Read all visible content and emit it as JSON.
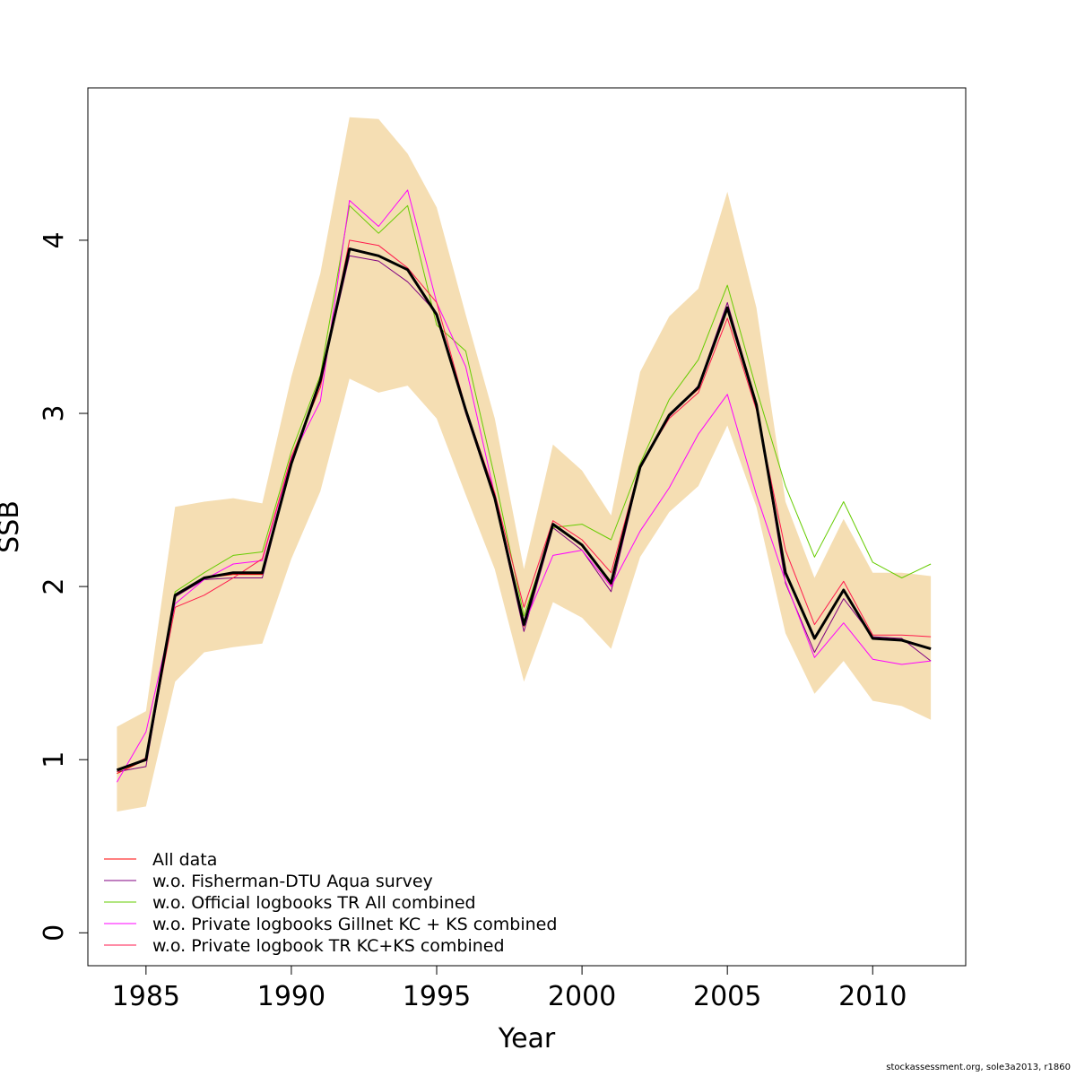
{
  "chart_data": {
    "type": "line",
    "xlabel": "Year",
    "ylabel": "SSB",
    "xlim": [
      1983,
      2013.2
    ],
    "ylim": [
      -0.19,
      4.88
    ],
    "x_ticks": [
      1985,
      1990,
      1995,
      2000,
      2005,
      2010
    ],
    "y_ticks": [
      0,
      1,
      2,
      3,
      4
    ],
    "x": [
      1984,
      1985,
      1986,
      1987,
      1988,
      1989,
      1990,
      1991,
      1992,
      1993,
      1994,
      1995,
      1996,
      1997,
      1998,
      1999,
      2000,
      2001,
      2002,
      2003,
      2004,
      2005,
      2006,
      2007,
      2008,
      2009,
      2010,
      2011,
      2012
    ],
    "band": {
      "color": "#f5deb3",
      "lower": [
        0.7,
        0.73,
        1.45,
        1.62,
        1.65,
        1.67,
        2.16,
        2.55,
        3.2,
        3.12,
        3.16,
        2.97,
        2.53,
        2.1,
        1.45,
        1.91,
        1.82,
        1.64,
        2.17,
        2.43,
        2.58,
        2.93,
        2.46,
        1.73,
        1.38,
        1.57,
        1.34,
        1.31,
        1.23
      ],
      "upper": [
        1.19,
        1.28,
        2.46,
        2.49,
        2.51,
        2.48,
        3.21,
        3.81,
        4.71,
        4.7,
        4.5,
        4.19,
        3.57,
        2.97,
        2.1,
        2.82,
        2.67,
        2.41,
        3.24,
        3.56,
        3.72,
        4.28,
        3.61,
        2.49,
        2.05,
        2.39,
        2.08,
        2.08,
        2.06
      ]
    },
    "series": [
      {
        "name": "All data",
        "color": "#ff0000",
        "width": 1,
        "values": [
          0.92,
          1.0,
          1.94,
          2.05,
          2.07,
          2.07,
          2.72,
          3.19,
          3.95,
          3.91,
          3.83,
          3.57,
          3.02,
          2.51,
          1.77,
          2.36,
          2.24,
          2.01,
          2.69,
          2.99,
          3.14,
          3.61,
          3.05,
          2.08,
          1.7,
          1.98,
          1.7,
          1.69,
          1.64
        ]
      },
      {
        "name": "w.o. Fisherman-DTU Aqua survey",
        "color": "#800080",
        "width": 1,
        "values": [
          0.93,
          0.96,
          1.94,
          2.04,
          2.05,
          2.05,
          2.71,
          3.18,
          3.91,
          3.88,
          3.76,
          3.58,
          3.0,
          2.5,
          1.74,
          2.34,
          2.21,
          1.97,
          2.68,
          2.98,
          3.16,
          3.64,
          3.06,
          2.02,
          1.62,
          1.93,
          1.71,
          1.7,
          1.57
        ]
      },
      {
        "name": "w.o. Official logbooks TR All combined",
        "color": "#66cc00",
        "width": 1,
        "values": [
          0.93,
          1.0,
          1.97,
          2.08,
          2.18,
          2.2,
          2.78,
          3.22,
          4.2,
          4.04,
          4.2,
          3.51,
          3.36,
          2.63,
          1.83,
          2.34,
          2.36,
          2.27,
          2.71,
          3.08,
          3.31,
          3.74,
          3.14,
          2.58,
          2.17,
          2.49,
          2.14,
          2.05,
          2.13
        ]
      },
      {
        "name": "w.o. Private logbooks Gillnet KC + KS combined",
        "color": "#ff00ff",
        "width": 1,
        "values": [
          0.87,
          1.16,
          1.9,
          2.04,
          2.13,
          2.15,
          2.74,
          3.07,
          4.23,
          4.08,
          4.29,
          3.64,
          3.27,
          2.53,
          1.78,
          2.18,
          2.21,
          2.0,
          2.32,
          2.57,
          2.88,
          3.11,
          2.53,
          2.03,
          1.59,
          1.79,
          1.58,
          1.55,
          1.57
        ]
      },
      {
        "name": "w.o. Private logbook TR KC+KS combined",
        "color": "#ff1a4d",
        "width": 1,
        "values": [
          0.93,
          1.01,
          1.88,
          1.95,
          2.05,
          2.16,
          2.75,
          3.15,
          4.0,
          3.97,
          3.84,
          3.64,
          3.03,
          2.54,
          1.88,
          2.38,
          2.27,
          2.08,
          2.7,
          2.97,
          3.12,
          3.55,
          3.02,
          2.21,
          1.78,
          2.03,
          1.72,
          1.72,
          1.71
        ]
      }
    ],
    "main_line": {
      "color": "#000000",
      "width": 3,
      "values": [
        0.94,
        1.0,
        1.95,
        2.05,
        2.08,
        2.08,
        2.71,
        3.19,
        3.95,
        3.91,
        3.83,
        3.57,
        3.02,
        2.51,
        1.78,
        2.36,
        2.24,
        2.02,
        2.69,
        2.99,
        3.15,
        3.61,
        3.05,
        2.08,
        1.7,
        1.98,
        1.7,
        1.69,
        1.64
      ]
    },
    "legend_position": "bottom-left"
  },
  "footer": "stockassessment.org, sole3a2013, r1860"
}
